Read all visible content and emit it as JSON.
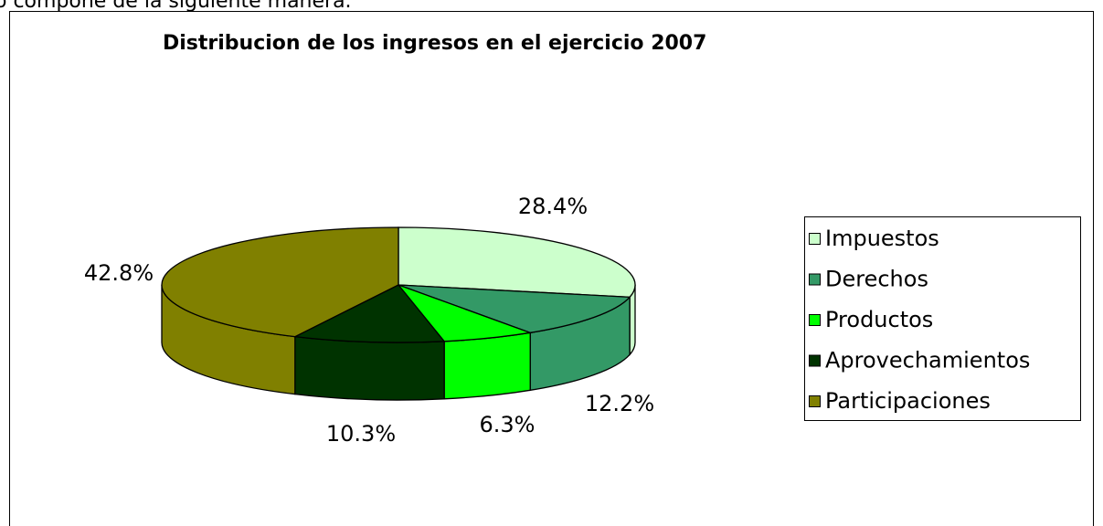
{
  "caption": "o compone de la siguiente manera.",
  "chart_data": {
    "type": "pie3d",
    "title": "Distribucion de los ingresos en el ejercicio 2007",
    "categories": [
      "Impuestos",
      "Derechos",
      "Productos",
      "Aprovechamientos",
      "Participaciones"
    ],
    "values": [
      28.4,
      12.2,
      6.3,
      10.3,
      42.8
    ],
    "value_labels": [
      "28.4%",
      "12.2%",
      "6.3%",
      "10.3%",
      "42.8%"
    ],
    "colors": [
      "#ccffcc",
      "#339966",
      "#00ff00",
      "#003300",
      "#808000"
    ],
    "legend": "right"
  }
}
